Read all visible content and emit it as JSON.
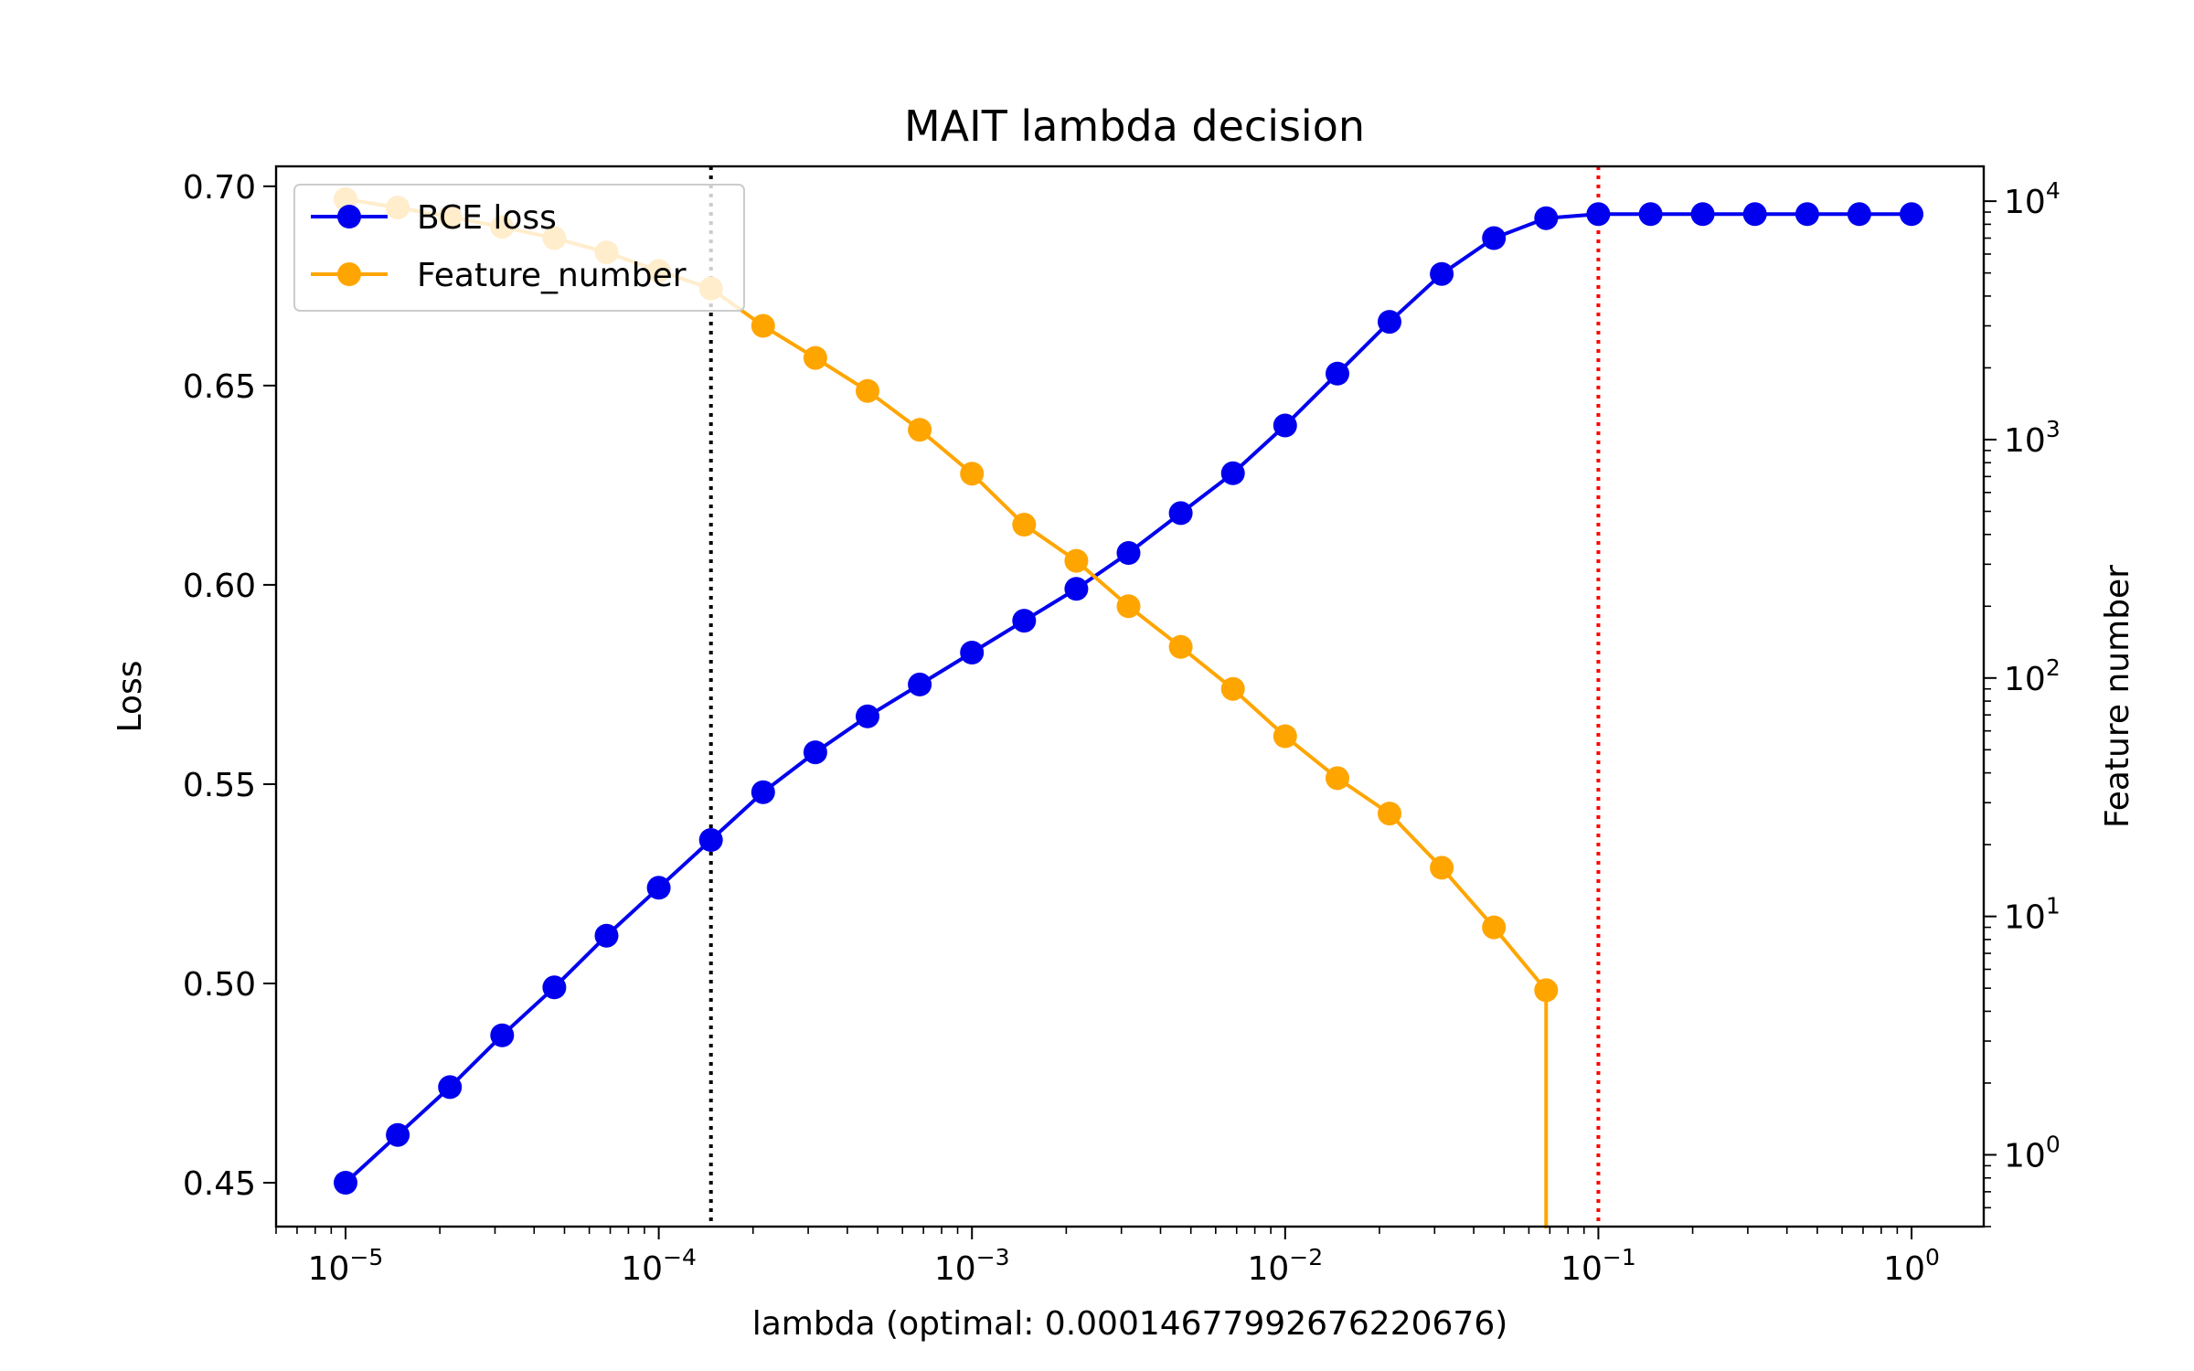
{
  "chart_data": {
    "type": "line",
    "title": "MAIT lambda decision",
    "xlabel": "lambda (optimal: 0.00014677992676220676)",
    "ylabel_left": "Loss",
    "ylabel_right": "Feature number",
    "x_scale": "log",
    "xlim": [
      6e-06,
      1.7
    ],
    "ylim_left": [
      0.439,
      0.705
    ],
    "ylim_right": [
      0.5,
      14000
    ],
    "y_right_scale": "log",
    "grid": false,
    "legend_position": "upper-left",
    "x_ticks": [
      {
        "base": "10",
        "exp": "−5",
        "value": 1e-05
      },
      {
        "base": "10",
        "exp": "−4",
        "value": 0.0001
      },
      {
        "base": "10",
        "exp": "−3",
        "value": 0.001
      },
      {
        "base": "10",
        "exp": "−2",
        "value": 0.01
      },
      {
        "base": "10",
        "exp": "−1",
        "value": 0.1
      },
      {
        "base": "10",
        "exp": "0",
        "value": 1
      }
    ],
    "y_left_ticks": [
      {
        "label": "0.45",
        "value": 0.45
      },
      {
        "label": "0.50",
        "value": 0.5
      },
      {
        "label": "0.55",
        "value": 0.55
      },
      {
        "label": "0.60",
        "value": 0.6
      },
      {
        "label": "0.65",
        "value": 0.65
      },
      {
        "label": "0.70",
        "value": 0.7
      }
    ],
    "y_right_ticks": [
      {
        "base": "10",
        "exp": "0",
        "value": 1
      },
      {
        "base": "10",
        "exp": "1",
        "value": 10
      },
      {
        "base": "10",
        "exp": "2",
        "value": 100
      },
      {
        "base": "10",
        "exp": "3",
        "value": 1000
      },
      {
        "base": "10",
        "exp": "4",
        "value": 10000
      }
    ],
    "x": [
      1e-05,
      1.468e-05,
      2.154e-05,
      3.162e-05,
      4.642e-05,
      6.813e-05,
      0.0001,
      0.0001468,
      0.0002154,
      0.0003162,
      0.0004642,
      0.0006813,
      0.001,
      0.001468,
      0.002154,
      0.003162,
      0.004642,
      0.006813,
      0.01,
      0.01468,
      0.02154,
      0.03162,
      0.04642,
      0.06813,
      0.1,
      0.1468,
      0.2154,
      0.3162,
      0.4642,
      0.6813,
      1
    ],
    "series": [
      {
        "name": "BCE loss",
        "axis": "left",
        "color": "#0000ee",
        "values": [
          0.45,
          0.462,
          0.474,
          0.487,
          0.499,
          0.512,
          0.524,
          0.536,
          0.548,
          0.558,
          0.567,
          0.575,
          0.583,
          0.591,
          0.599,
          0.608,
          0.618,
          0.628,
          0.64,
          0.653,
          0.666,
          0.678,
          0.687,
          0.692,
          0.693,
          0.693,
          0.693,
          0.693,
          0.693,
          0.693,
          0.693
        ]
      },
      {
        "name": "Feature_number",
        "axis": "right",
        "color": "#ffa500",
        "values": [
          10200,
          9400,
          8600,
          7800,
          7000,
          6100,
          5100,
          4300,
          3000,
          2200,
          1600,
          1100,
          720,
          440,
          310,
          200,
          135,
          90,
          57,
          38,
          27,
          16,
          9,
          4.9,
          null,
          null,
          null,
          null,
          null,
          null,
          null
        ],
        "drop_to_zero_at": 0.06813
      }
    ],
    "vlines": [
      {
        "x": 0.00014677992676220676,
        "color": "#000000",
        "style": "dotted"
      },
      {
        "x": 0.1,
        "color": "#ff0000",
        "style": "dotted"
      }
    ]
  }
}
